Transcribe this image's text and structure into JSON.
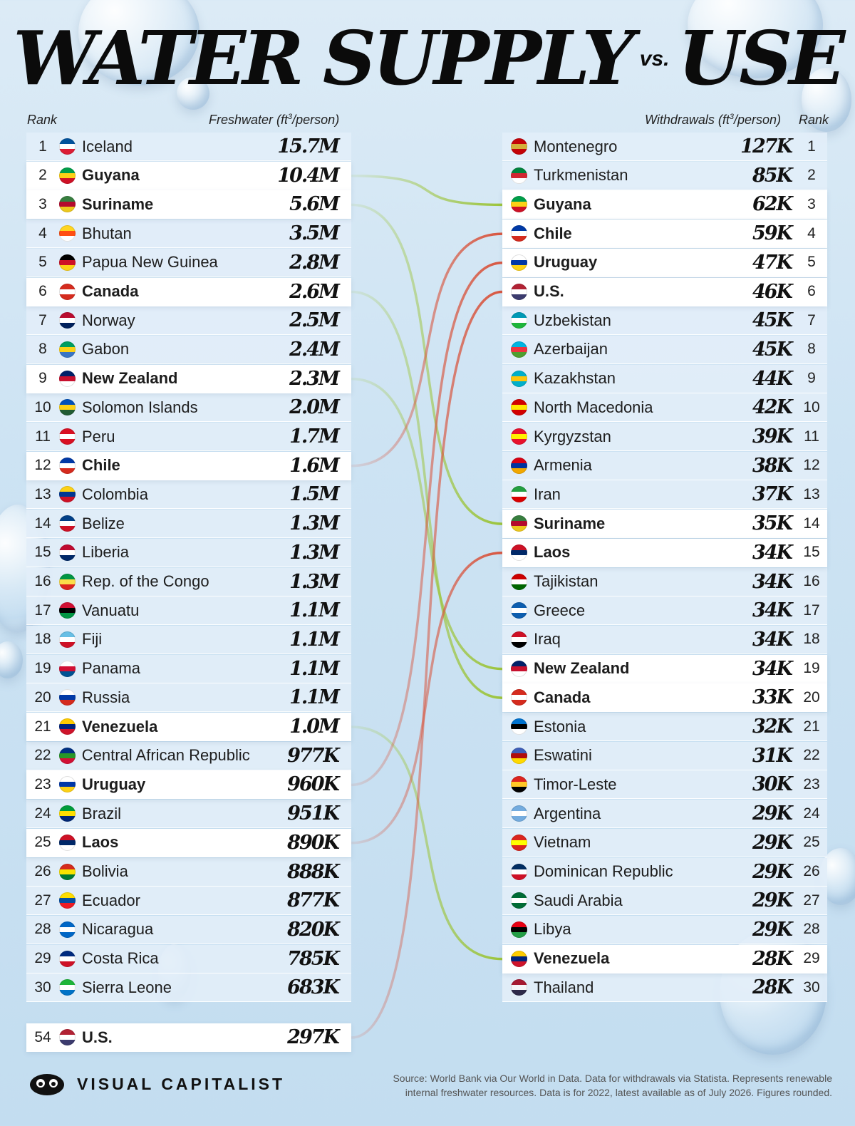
{
  "title": {
    "main_left": "WATER SUPPLY",
    "vs": "vs.",
    "main_right": "USE"
  },
  "headers": {
    "rank": "Rank",
    "freshwater": "Freshwater (ft³/person)",
    "withdrawals": "Withdrawals (ft³/person)",
    "rank_right": "Rank"
  },
  "colors": {
    "green_link": "#9cc43a",
    "red_link": "#d8553e",
    "highlight": "#ffffff",
    "row": "#e2eef8"
  },
  "chart_data": {
    "type": "table",
    "left_title": "Freshwater (ft³/person)",
    "right_title": "Withdrawals (ft³/person)",
    "freshwater": [
      {
        "rank": "1",
        "country": "Iceland",
        "value": "15.7M",
        "flag": [
          "#02529c",
          "#ffffff",
          "#dc1e35"
        ]
      },
      {
        "rank": "2",
        "country": "Guyana",
        "value": "10.4M",
        "highlight": true,
        "link": "green",
        "flag": [
          "#009e49",
          "#fcd116",
          "#ce1126"
        ]
      },
      {
        "rank": "3",
        "country": "Suriname",
        "value": "5.6M",
        "highlight": true,
        "link": "green",
        "flag": [
          "#377e3f",
          "#b40a2d",
          "#ecc81d"
        ]
      },
      {
        "rank": "4",
        "country": "Bhutan",
        "value": "3.5M",
        "flag": [
          "#ffd520",
          "#ff4e12",
          "#ffffff"
        ]
      },
      {
        "rank": "5",
        "country": "Papua New Guinea",
        "value": "2.8M",
        "flag": [
          "#000000",
          "#ce1126",
          "#fcd116"
        ]
      },
      {
        "rank": "6",
        "country": "Canada",
        "value": "2.6M",
        "highlight": true,
        "link": "green",
        "flag": [
          "#d52b1e",
          "#ffffff",
          "#d52b1e"
        ]
      },
      {
        "rank": "7",
        "country": "Norway",
        "value": "2.5M",
        "flag": [
          "#ba0c2f",
          "#ffffff",
          "#00205b"
        ]
      },
      {
        "rank": "8",
        "country": "Gabon",
        "value": "2.4M",
        "flag": [
          "#009e60",
          "#fcd116",
          "#3a75c4"
        ]
      },
      {
        "rank": "9",
        "country": "New Zealand",
        "value": "2.3M",
        "highlight": true,
        "link": "green",
        "flag": [
          "#012169",
          "#c8102e",
          "#ffffff"
        ]
      },
      {
        "rank": "10",
        "country": "Solomon Islands",
        "value": "2.0M",
        "flag": [
          "#0051ba",
          "#fcd116",
          "#215b33"
        ]
      },
      {
        "rank": "11",
        "country": "Peru",
        "value": "1.7M",
        "flag": [
          "#d91023",
          "#ffffff",
          "#d91023"
        ]
      },
      {
        "rank": "12",
        "country": "Chile",
        "value": "1.6M",
        "highlight": true,
        "link": "red",
        "flag": [
          "#0039a6",
          "#ffffff",
          "#d52b1e"
        ]
      },
      {
        "rank": "13",
        "country": "Colombia",
        "value": "1.5M",
        "flag": [
          "#fcd116",
          "#003893",
          "#ce1126"
        ]
      },
      {
        "rank": "14",
        "country": "Belize",
        "value": "1.3M",
        "flag": [
          "#003f87",
          "#ffffff",
          "#ce1126"
        ]
      },
      {
        "rank": "15",
        "country": "Liberia",
        "value": "1.3M",
        "flag": [
          "#bf0a30",
          "#ffffff",
          "#002868"
        ]
      },
      {
        "rank": "16",
        "country": "Rep. of the Congo",
        "value": "1.3M",
        "flag": [
          "#009543",
          "#fbde4a",
          "#dc241f"
        ]
      },
      {
        "rank": "17",
        "country": "Vanuatu",
        "value": "1.1M",
        "flag": [
          "#d21034",
          "#000000",
          "#009543"
        ]
      },
      {
        "rank": "18",
        "country": "Fiji",
        "value": "1.1M",
        "flag": [
          "#68bfe5",
          "#ffffff",
          "#ce1126"
        ]
      },
      {
        "rank": "19",
        "country": "Panama",
        "value": "1.1M",
        "flag": [
          "#ffffff",
          "#d21034",
          "#005293"
        ]
      },
      {
        "rank": "20",
        "country": "Russia",
        "value": "1.1M",
        "flag": [
          "#ffffff",
          "#0039a6",
          "#d52b1e"
        ]
      },
      {
        "rank": "21",
        "country": "Venezuela",
        "value": "1.0M",
        "highlight": true,
        "link": "green",
        "flag": [
          "#ffcc00",
          "#00247d",
          "#cf142b"
        ]
      },
      {
        "rank": "22",
        "country": "Central African Republic",
        "value": "977K",
        "flag": [
          "#003082",
          "#289728",
          "#d21034"
        ]
      },
      {
        "rank": "23",
        "country": "Uruguay",
        "value": "960K",
        "highlight": true,
        "link": "red",
        "flag": [
          "#ffffff",
          "#0038a8",
          "#fcd116"
        ]
      },
      {
        "rank": "24",
        "country": "Brazil",
        "value": "951K",
        "flag": [
          "#009c3b",
          "#ffdf00",
          "#002776"
        ]
      },
      {
        "rank": "25",
        "country": "Laos",
        "value": "890K",
        "highlight": true,
        "link": "red",
        "flag": [
          "#ce1126",
          "#002868",
          "#ffffff"
        ]
      },
      {
        "rank": "26",
        "country": "Bolivia",
        "value": "888K",
        "flag": [
          "#d52b1e",
          "#f9e300",
          "#007934"
        ]
      },
      {
        "rank": "27",
        "country": "Ecuador",
        "value": "877K",
        "flag": [
          "#ffdd00",
          "#034ea2",
          "#ed1c24"
        ]
      },
      {
        "rank": "28",
        "country": "Nicaragua",
        "value": "820K",
        "flag": [
          "#0067c6",
          "#ffffff",
          "#0067c6"
        ]
      },
      {
        "rank": "29",
        "country": "Costa Rica",
        "value": "785K",
        "flag": [
          "#002b7f",
          "#ffffff",
          "#ce1126"
        ]
      },
      {
        "rank": "30",
        "country": "Sierra Leone",
        "value": "683K",
        "flag": [
          "#1eb53a",
          "#ffffff",
          "#0072c6"
        ]
      },
      {
        "rank": "54",
        "country": "U.S.",
        "value": "297K",
        "highlight": true,
        "link": "red",
        "flag": [
          "#b22234",
          "#ffffff",
          "#3c3b6e"
        ]
      }
    ],
    "withdrawals": [
      {
        "rank": "1",
        "country": "Montenegro",
        "value": "127K",
        "flag": [
          "#c40308",
          "#d4af3a",
          "#c40308"
        ]
      },
      {
        "rank": "2",
        "country": "Turkmenistan",
        "value": "85K",
        "flag": [
          "#00843d",
          "#d22630",
          "#ffffff"
        ]
      },
      {
        "rank": "3",
        "country": "Guyana",
        "value": "62K",
        "highlight": true,
        "flag": [
          "#009e49",
          "#fcd116",
          "#ce1126"
        ]
      },
      {
        "rank": "4",
        "country": "Chile",
        "value": "59K",
        "highlight": true,
        "flag": [
          "#0039a6",
          "#ffffff",
          "#d52b1e"
        ]
      },
      {
        "rank": "5",
        "country": "Uruguay",
        "value": "47K",
        "highlight": true,
        "flag": [
          "#ffffff",
          "#0038a8",
          "#fcd116"
        ]
      },
      {
        "rank": "6",
        "country": "U.S.",
        "value": "46K",
        "highlight": true,
        "flag": [
          "#b22234",
          "#ffffff",
          "#3c3b6e"
        ]
      },
      {
        "rank": "7",
        "country": "Uzbekistan",
        "value": "45K",
        "flag": [
          "#0099b5",
          "#ffffff",
          "#1eb53a"
        ]
      },
      {
        "rank": "8",
        "country": "Azerbaijan",
        "value": "45K",
        "flag": [
          "#00b5e2",
          "#ef3340",
          "#509e2f"
        ]
      },
      {
        "rank": "9",
        "country": "Kazakhstan",
        "value": "44K",
        "flag": [
          "#00afca",
          "#fec50c",
          "#00afca"
        ]
      },
      {
        "rank": "10",
        "country": "North Macedonia",
        "value": "42K",
        "flag": [
          "#d20000",
          "#ffe600",
          "#d20000"
        ]
      },
      {
        "rank": "11",
        "country": "Kyrgyzstan",
        "value": "39K",
        "flag": [
          "#e8112d",
          "#ffef00",
          "#e8112d"
        ]
      },
      {
        "rank": "12",
        "country": "Armenia",
        "value": "38K",
        "flag": [
          "#d90012",
          "#0033a0",
          "#f2a800"
        ]
      },
      {
        "rank": "13",
        "country": "Iran",
        "value": "37K",
        "flag": [
          "#239f40",
          "#ffffff",
          "#da0000"
        ]
      },
      {
        "rank": "14",
        "country": "Suriname",
        "value": "35K",
        "highlight": true,
        "flag": [
          "#377e3f",
          "#b40a2d",
          "#ecc81d"
        ]
      },
      {
        "rank": "15",
        "country": "Laos",
        "value": "34K",
        "highlight": true,
        "flag": [
          "#ce1126",
          "#002868",
          "#ffffff"
        ]
      },
      {
        "rank": "16",
        "country": "Tajikistan",
        "value": "34K",
        "flag": [
          "#cc0000",
          "#ffffff",
          "#006600"
        ]
      },
      {
        "rank": "17",
        "country": "Greece",
        "value": "34K",
        "flag": [
          "#0d5eaf",
          "#ffffff",
          "#0d5eaf"
        ]
      },
      {
        "rank": "18",
        "country": "Iraq",
        "value": "34K",
        "flag": [
          "#ce1126",
          "#ffffff",
          "#000000"
        ]
      },
      {
        "rank": "19",
        "country": "New Zealand",
        "value": "34K",
        "highlight": true,
        "flag": [
          "#012169",
          "#c8102e",
          "#ffffff"
        ]
      },
      {
        "rank": "20",
        "country": "Canada",
        "value": "33K",
        "highlight": true,
        "flag": [
          "#d52b1e",
          "#ffffff",
          "#d52b1e"
        ]
      },
      {
        "rank": "21",
        "country": "Estonia",
        "value": "32K",
        "flag": [
          "#0072ce",
          "#000000",
          "#ffffff"
        ]
      },
      {
        "rank": "22",
        "country": "Eswatini",
        "value": "31K",
        "flag": [
          "#3e5eb9",
          "#b10c0c",
          "#ffd900"
        ]
      },
      {
        "rank": "23",
        "country": "Timor-Leste",
        "value": "30K",
        "flag": [
          "#dc241f",
          "#ffc726",
          "#000000"
        ]
      },
      {
        "rank": "24",
        "country": "Argentina",
        "value": "29K",
        "flag": [
          "#74acdf",
          "#ffffff",
          "#74acdf"
        ]
      },
      {
        "rank": "25",
        "country": "Vietnam",
        "value": "29K",
        "flag": [
          "#da251d",
          "#ffff00",
          "#da251d"
        ]
      },
      {
        "rank": "26",
        "country": "Dominican Republic",
        "value": "29K",
        "flag": [
          "#002d62",
          "#ffffff",
          "#ce1126"
        ]
      },
      {
        "rank": "27",
        "country": "Saudi Arabia",
        "value": "29K",
        "flag": [
          "#006c35",
          "#ffffff",
          "#006c35"
        ]
      },
      {
        "rank": "28",
        "country": "Libya",
        "value": "29K",
        "flag": [
          "#e70013",
          "#000000",
          "#239e46"
        ]
      },
      {
        "rank": "29",
        "country": "Venezuela",
        "value": "28K",
        "highlight": true,
        "flag": [
          "#ffcc00",
          "#00247d",
          "#cf142b"
        ]
      },
      {
        "rank": "30",
        "country": "Thailand",
        "value": "28K",
        "flag": [
          "#a51931",
          "#f4f5f8",
          "#2d2a4a"
        ]
      }
    ]
  },
  "footer": {
    "brand": "VISUAL CAPITALIST",
    "source_line1": "Source: World Bank via Our World in Data. Data for withdrawals via Statista. Represents renewable",
    "source_line2": "internal freshwater resources. Data is for 2022, latest available as of July 2026. Figures rounded."
  }
}
